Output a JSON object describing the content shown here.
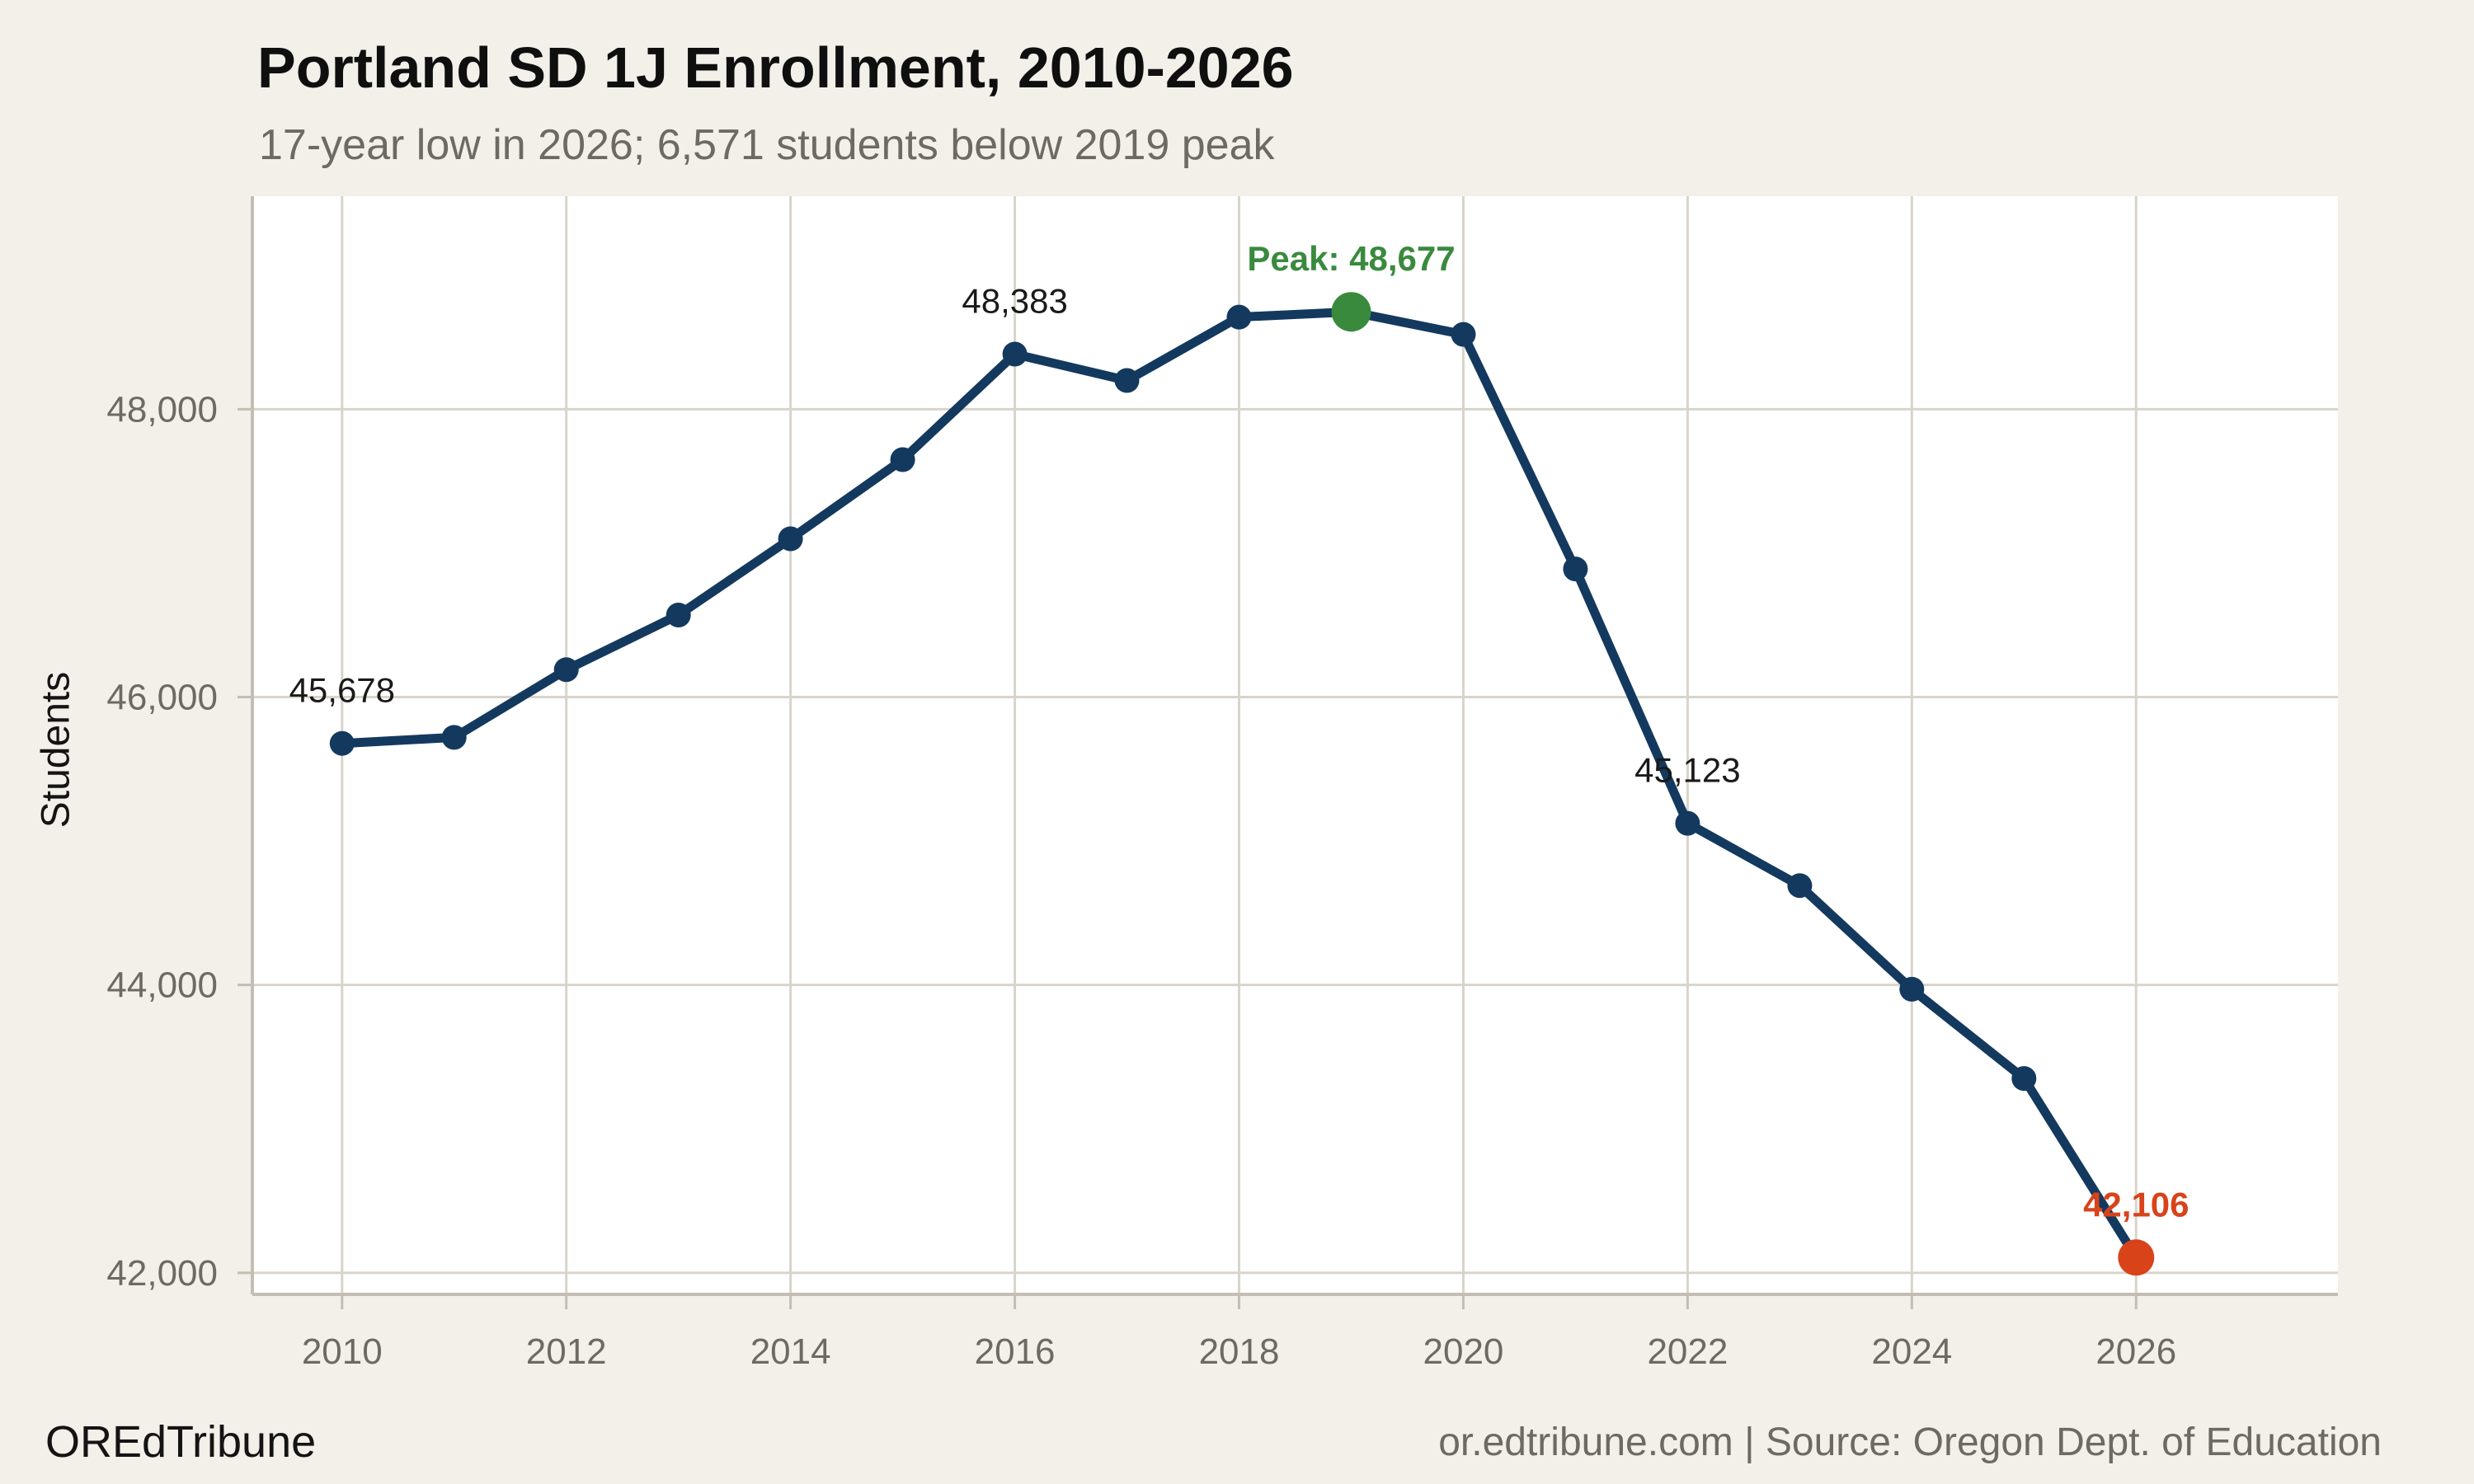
{
  "title": "Portland SD 1J Enrollment, 2010-2026",
  "subtitle": "17-year low in 2026; 6,571 students below 2019 peak",
  "footer": {
    "brand": "OREdTribune",
    "source": "or.edtribune.com | Source: Oregon Dept. of Education"
  },
  "colors": {
    "background": "#f3efe9",
    "plot_background": "#ffffff",
    "gridline": "#d9d4ca",
    "axis": "#c4beb2",
    "line": "#14395f",
    "marker": "#14395f",
    "peak": "#3a8a3e",
    "low": "#d8431a",
    "tick_text": "#6e6a63",
    "annotation_text": "#1a1a1a"
  },
  "chart_data": {
    "type": "line",
    "title": "Portland SD 1J Enrollment, 2010-2026",
    "subtitle": "17-year low in 2026; 6,571 students below 2019 peak",
    "xlabel": "",
    "ylabel": "Students",
    "x": [
      2010,
      2011,
      2012,
      2013,
      2014,
      2015,
      2016,
      2017,
      2018,
      2019,
      2020,
      2021,
      2022,
      2023,
      2024,
      2025,
      2026
    ],
    "values": [
      45678,
      45720,
      46190,
      46570,
      47100,
      47650,
      48383,
      48200,
      48640,
      48677,
      48520,
      46890,
      45123,
      44690,
      43970,
      43350,
      42106
    ],
    "xticks": [
      2010,
      2012,
      2014,
      2016,
      2018,
      2020,
      2022,
      2024,
      2026
    ],
    "yticks": [
      42000,
      44000,
      46000,
      48000
    ],
    "xlim": [
      2009.2,
      2027.8
    ],
    "ylim": [
      41850,
      49480
    ],
    "grid": true,
    "legend": "none",
    "peak_year": 2019,
    "low_year": 2026,
    "annotations": [
      {
        "year": 2010,
        "label": "45,678",
        "kind": "plain"
      },
      {
        "year": 2016,
        "label": "48,383",
        "kind": "plain"
      },
      {
        "year": 2019,
        "label": "Peak: 48,677",
        "kind": "peak"
      },
      {
        "year": 2022,
        "label": "45,123",
        "kind": "plain"
      },
      {
        "year": 2026,
        "label": "42,106",
        "kind": "low"
      }
    ]
  }
}
